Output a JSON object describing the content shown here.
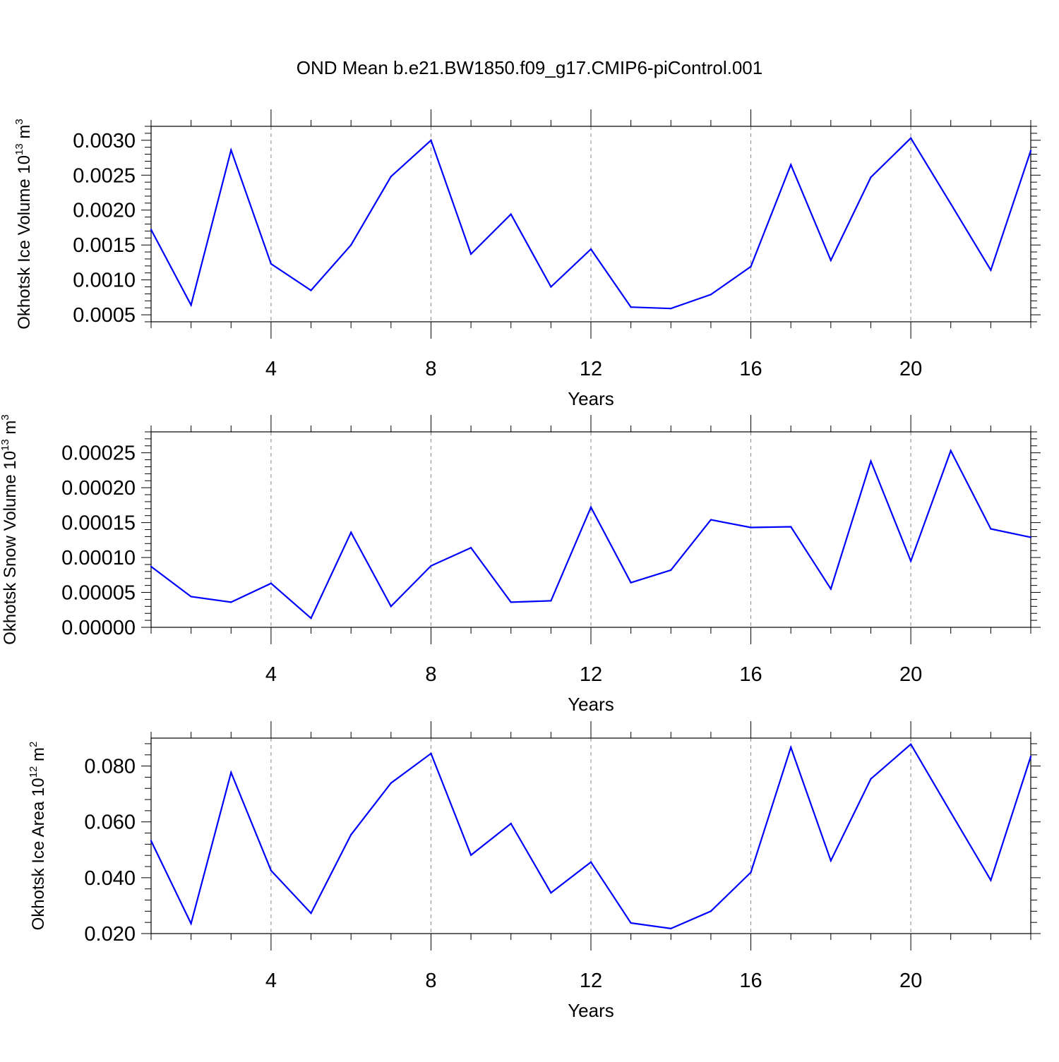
{
  "title": "OND Mean b.e21.BW1850.f09_g17.CMIP6-piControl.001",
  "chart_data": [
    {
      "type": "line",
      "ylabel": "Okhotsk Ice Volume 10",
      "ylabel_exp": "13",
      "ylabel_unit": "m",
      "ylabel_unit_exp": "3",
      "xlabel": "Years",
      "xlim": [
        1,
        23
      ],
      "ylim": [
        0.0004,
        0.0032
      ],
      "xticks": [
        4,
        8,
        12,
        16,
        20
      ],
      "xtick_labels": [
        "4",
        "8",
        "12",
        "16",
        "20"
      ],
      "yticks": [
        0.0005,
        0.001,
        0.0015,
        0.002,
        0.0025,
        0.003
      ],
      "ytick_labels": [
        "0.0005",
        "0.0010",
        "0.0015",
        "0.0020",
        "0.0025",
        "0.0030"
      ],
      "grid": "x-dashed",
      "color": "#0000ff",
      "x": [
        1,
        2,
        3,
        4,
        5,
        6,
        7,
        8,
        9,
        10,
        11,
        12,
        13,
        14,
        15,
        16,
        17,
        18,
        19,
        20,
        21,
        22,
        23
      ],
      "y": [
        0.00172,
        0.00064,
        0.00286,
        0.00123,
        0.00085,
        0.0015,
        0.00248,
        0.003,
        0.00137,
        0.00194,
        0.0009,
        0.00144,
        0.00061,
        0.00059,
        0.00079,
        0.00119,
        0.00265,
        0.00128,
        0.00247,
        0.00303,
        0.00209,
        0.00114,
        0.00285
      ]
    },
    {
      "type": "line",
      "ylabel": "Okhotsk Snow Volume 10",
      "ylabel_exp": "13",
      "ylabel_unit": "m",
      "ylabel_unit_exp": "3",
      "xlabel": "Years",
      "xlim": [
        1,
        23
      ],
      "ylim": [
        0.0,
        0.00028
      ],
      "xticks": [
        4,
        8,
        12,
        16,
        20
      ],
      "xtick_labels": [
        "4",
        "8",
        "12",
        "16",
        "20"
      ],
      "yticks": [
        0.0,
        5e-05,
        0.0001,
        0.00015,
        0.0002,
        0.00025
      ],
      "ytick_labels": [
        "0.00000",
        "0.00005",
        "0.00010",
        "0.00015",
        "0.00020",
        "0.00025"
      ],
      "grid": "x-dashed",
      "color": "#0000ff",
      "x": [
        1,
        2,
        3,
        4,
        5,
        6,
        7,
        8,
        9,
        10,
        11,
        12,
        13,
        14,
        15,
        16,
        17,
        18,
        19,
        20,
        21,
        22,
        23
      ],
      "y": [
        8.7e-05,
        4.4e-05,
        3.6e-05,
        6.3e-05,
        1.3e-05,
        0.000136,
        3e-05,
        8.8e-05,
        0.000114,
        3.6e-05,
        3.8e-05,
        0.000172,
        6.4e-05,
        8.2e-05,
        0.000154,
        0.000143,
        0.000144,
        5.5e-05,
        0.000238,
        9.5e-05,
        0.000253,
        0.000141,
        0.000129
      ]
    },
    {
      "type": "line",
      "ylabel": "Okhotsk Ice Area 10",
      "ylabel_exp": "12",
      "ylabel_unit": "m",
      "ylabel_unit_exp": "2",
      "xlabel": "Years",
      "xlim": [
        1,
        23
      ],
      "ylim": [
        0.02,
        0.09
      ],
      "xticks": [
        4,
        8,
        12,
        16,
        20
      ],
      "xtick_labels": [
        "4",
        "8",
        "12",
        "16",
        "20"
      ],
      "yticks": [
        0.02,
        0.04,
        0.06,
        0.08
      ],
      "ytick_labels": [
        "0.020",
        "0.040",
        "0.060",
        "0.080"
      ],
      "grid": "x-dashed",
      "color": "#0000ff",
      "x": [
        1,
        2,
        3,
        4,
        5,
        6,
        7,
        8,
        9,
        10,
        11,
        12,
        13,
        14,
        15,
        16,
        17,
        18,
        19,
        20,
        21,
        22,
        23
      ],
      "y": [
        0.0532,
        0.0236,
        0.0777,
        0.0426,
        0.0273,
        0.0554,
        0.0739,
        0.0845,
        0.0481,
        0.0594,
        0.0346,
        0.0456,
        0.0238,
        0.0218,
        0.028,
        0.0419,
        0.0867,
        0.0461,
        0.0754,
        0.0878,
        0.0634,
        0.0391,
        0.0834
      ]
    }
  ]
}
